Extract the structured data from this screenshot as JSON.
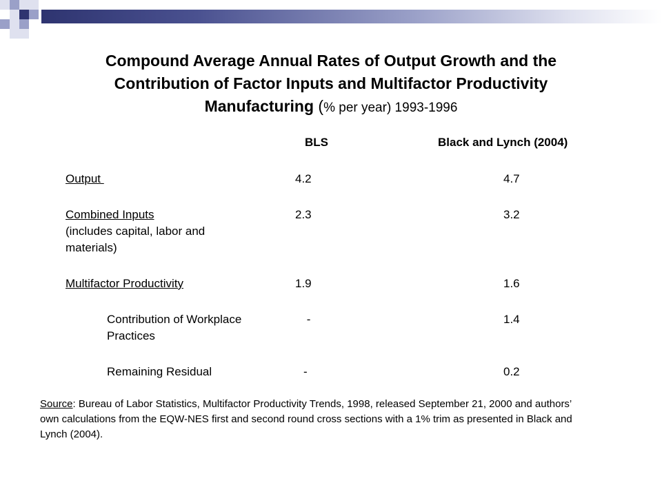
{
  "title": {
    "line1": "Compound Average Annual Rates of Output Growth and the",
    "line2": "Contribution of Factor Inputs and Multifactor Productivity",
    "line3_bold": "Manufacturing",
    "line3_paren": "(",
    "line3_sub": "% per year) 1993-1996"
  },
  "columns": {
    "bls": "BLS",
    "black_lynch": "Black and Lynch (2004)"
  },
  "rows": [
    {
      "label": "Output ",
      "note": "",
      "bls": "4.2",
      "bl": "4.7"
    },
    {
      "label": "Combined Inputs",
      "note": "(includes capital, labor and materials)",
      "bls": "2.3",
      "bl": "3.2"
    },
    {
      "label": "Multifactor Productivity",
      "note": "",
      "bls": "1.9",
      "bl": "1.6"
    },
    {
      "label": "Contribution of Workplace Practices",
      "note": "",
      "bls": " -",
      "bl": "1.4"
    },
    {
      "label": "Remaining Residual",
      "note": "",
      "bls": "-",
      "bl": "0.2"
    }
  ],
  "source": {
    "label": "Source",
    "text": ": Bureau of Labor Statistics, Multifactor Productivity Trends, 1998, released September 21, 2000 and authors’ own calculations from the EQW-NES first and second round cross sections with a 1% trim as presented in Black and Lynch (2004)."
  },
  "colors": {
    "navy": "#2e3470",
    "periwinkle": "#9aa0c8",
    "light": "#dfe1ef"
  }
}
